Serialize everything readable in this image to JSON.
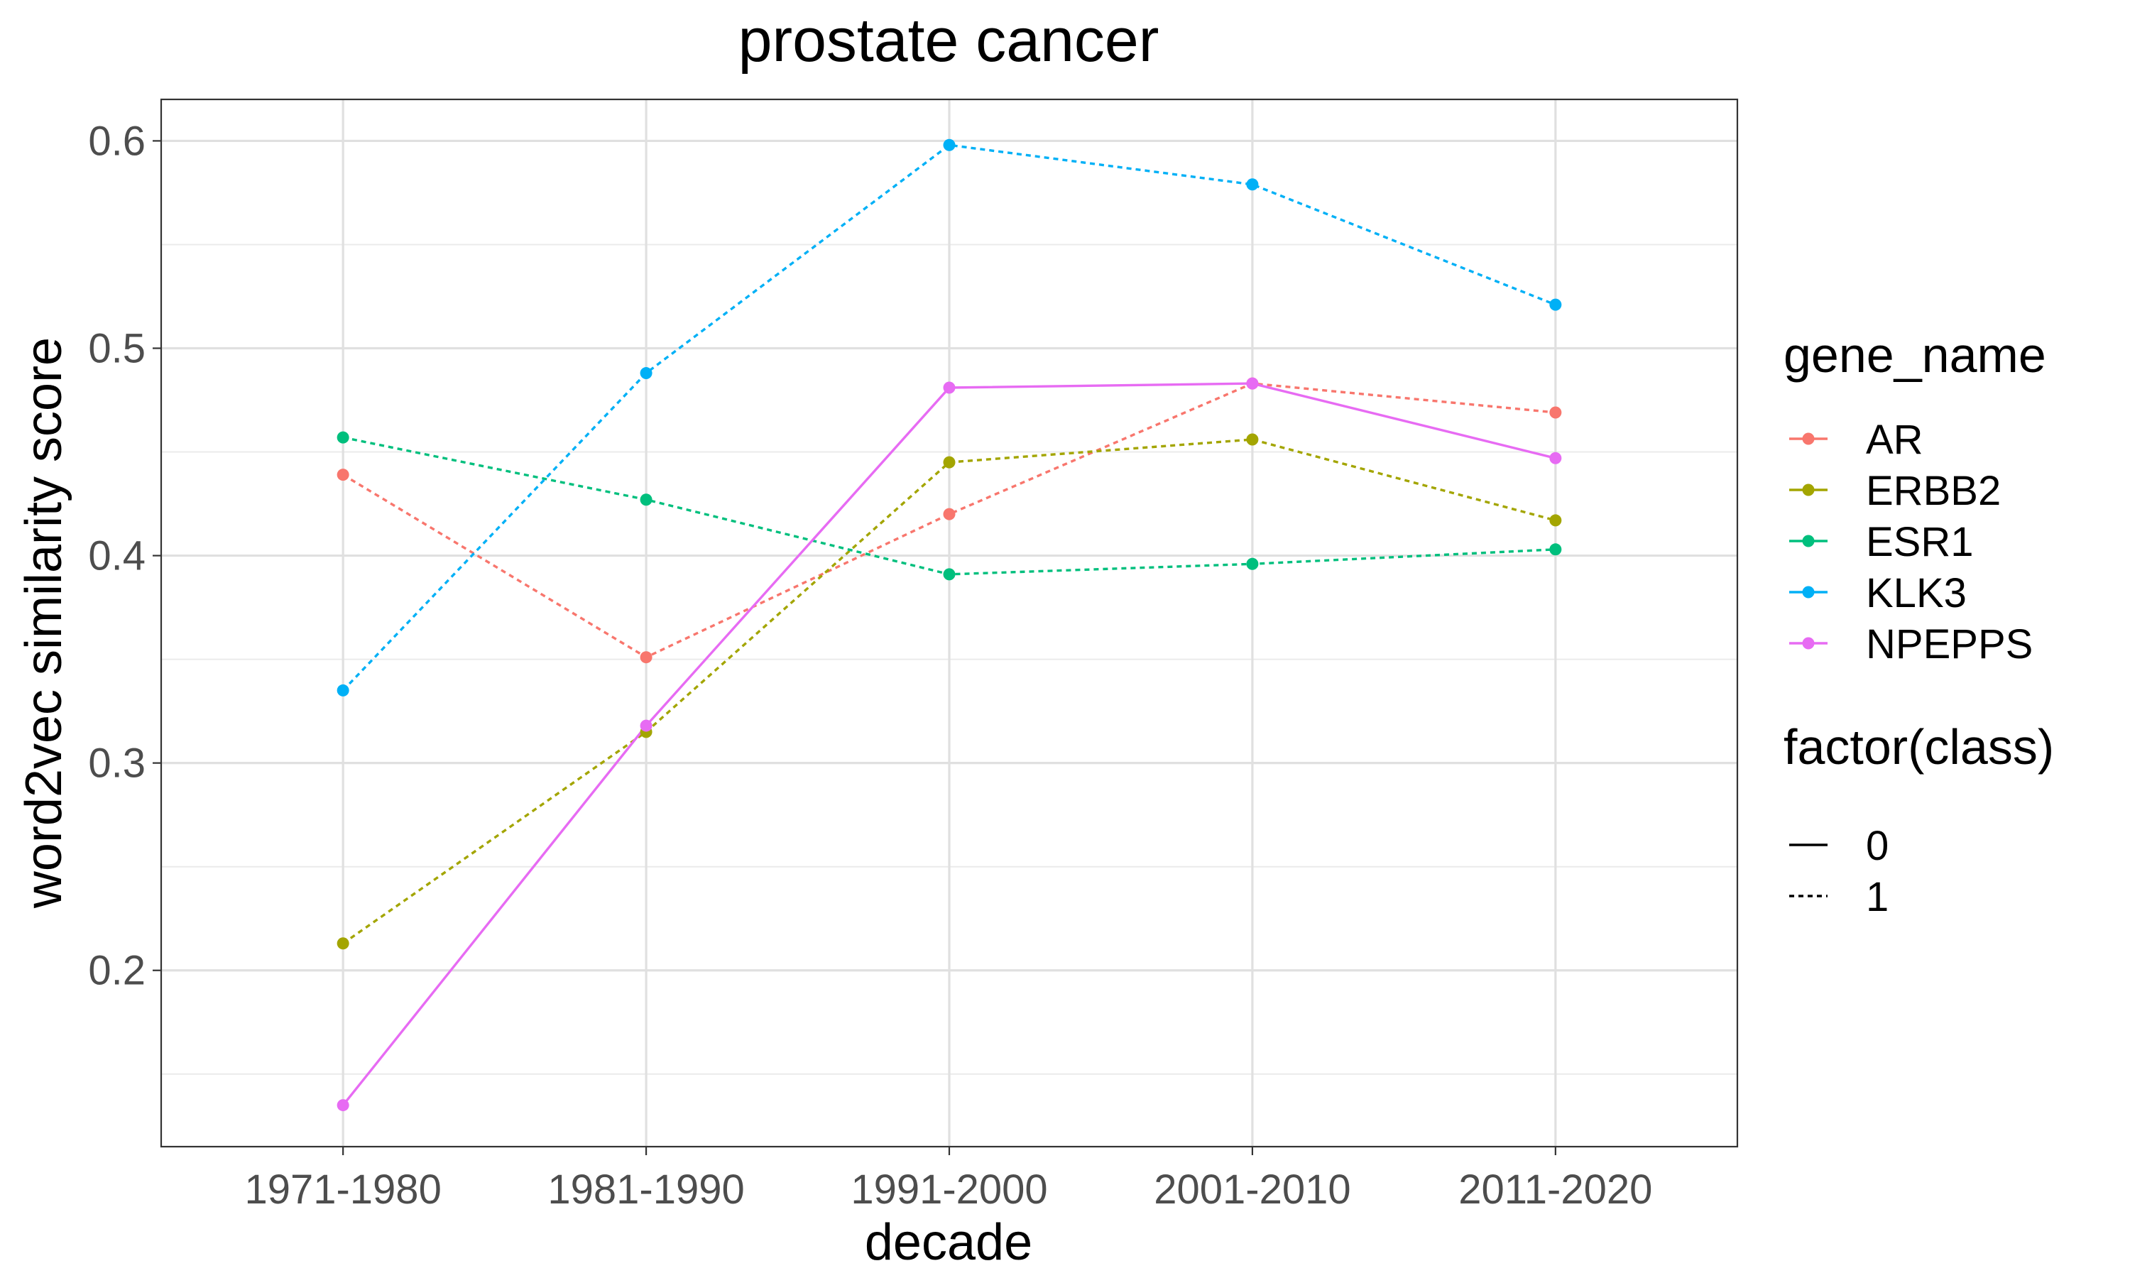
{
  "chart_data": {
    "type": "line",
    "title": "prostate cancer",
    "xlabel": "decade",
    "ylabel": "word2vec similarity score",
    "categories": [
      "1971-1980",
      "1981-1990",
      "1991-2000",
      "2001-2010",
      "2011-2020"
    ],
    "ylim": [
      0.115,
      0.62
    ],
    "yticks": [
      0.2,
      0.3,
      0.4,
      0.5,
      0.6
    ],
    "ytick_labels": [
      "0.2",
      "0.3",
      "0.4",
      "0.5",
      "0.6"
    ],
    "grid": true,
    "legend_position": "right",
    "series": [
      {
        "name": "AR",
        "color": "#F8766D",
        "class": "1",
        "values": [
          0.439,
          0.351,
          0.42,
          0.483,
          0.469
        ]
      },
      {
        "name": "ERBB2",
        "color": "#A3A500",
        "class": "1",
        "values": [
          0.213,
          0.315,
          0.445,
          0.456,
          0.417
        ]
      },
      {
        "name": "ESR1",
        "color": "#00BF7D",
        "class": "1",
        "values": [
          0.457,
          0.427,
          0.391,
          0.396,
          0.403
        ]
      },
      {
        "name": "KLK3",
        "color": "#00B0F6",
        "class": "1",
        "values": [
          0.335,
          0.488,
          0.598,
          0.579,
          0.521
        ]
      },
      {
        "name": "NPEPPS",
        "color": "#E76BF3",
        "class": "0",
        "values": [
          0.135,
          0.318,
          0.481,
          0.483,
          0.447
        ]
      }
    ],
    "legend": {
      "color_title": "gene_name",
      "linetype_title": "factor(class)",
      "linetype_entries": [
        {
          "label": "0",
          "style": "solid"
        },
        {
          "label": "1",
          "style": "dotted"
        }
      ]
    }
  }
}
